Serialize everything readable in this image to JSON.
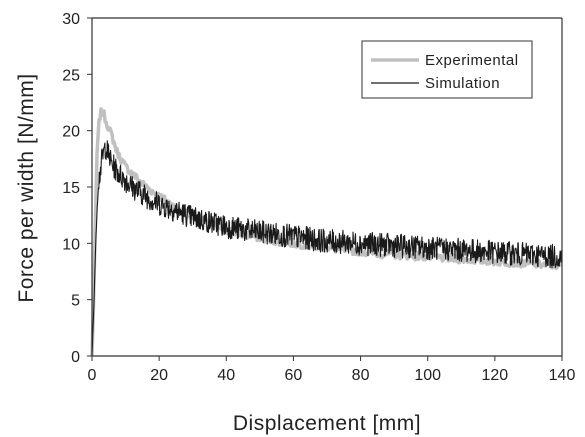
{
  "chart_data": {
    "type": "line",
    "xlabel": "Displacement [mm]",
    "ylabel": "Force per width [N/mm]",
    "xlim": [
      0,
      140
    ],
    "ylim": [
      0,
      30
    ],
    "xticks": [
      "0",
      "20",
      "40",
      "60",
      "80",
      "100",
      "120",
      "140"
    ],
    "yticks": [
      "0",
      "5",
      "10",
      "15",
      "20",
      "25",
      "30"
    ],
    "grid": false,
    "legend_position": "top-right",
    "series": [
      {
        "name": "Experimental",
        "color": "#c0c0c0",
        "x": [
          0,
          0.5,
          1,
          1.5,
          2,
          2.5,
          3,
          3.5,
          4,
          5,
          6,
          7,
          8,
          10,
          12,
          15,
          18,
          20,
          25,
          30,
          35,
          40,
          45,
          50,
          55,
          60,
          65,
          70,
          75,
          80,
          85,
          90,
          95,
          100,
          105,
          110,
          115,
          120,
          125,
          130,
          135,
          140
        ],
        "y": [
          0,
          5,
          12,
          18,
          20.5,
          21.5,
          21.7,
          21.5,
          21,
          20.2,
          19.5,
          18.5,
          17.8,
          16.8,
          16.2,
          15.3,
          14.6,
          14.2,
          13.2,
          12.4,
          11.8,
          11.2,
          10.8,
          10.5,
          10.2,
          10,
          9.8,
          9.6,
          9.4,
          9.3,
          9.1,
          9,
          8.9,
          8.8,
          8.7,
          8.6,
          8.5,
          8.4,
          8.3,
          8.2,
          8.1,
          8
        ]
      },
      {
        "name": "Simulation",
        "color": "#1a1a1a",
        "x": [
          0,
          0.5,
          1,
          1.5,
          2,
          3,
          4,
          5,
          6,
          8,
          10,
          12,
          15,
          18,
          20,
          25,
          30,
          35,
          40,
          45,
          50,
          55,
          60,
          65,
          70,
          75,
          80,
          85,
          90,
          95,
          100,
          105,
          110,
          115,
          120,
          125,
          130,
          135,
          140
        ],
        "y": [
          0,
          4,
          9,
          13,
          15.5,
          17.5,
          18.6,
          17.8,
          17,
          16.2,
          15.6,
          15,
          14.4,
          13.8,
          13.5,
          12.9,
          12.3,
          11.9,
          11.5,
          11.2,
          11,
          10.8,
          10.6,
          10.4,
          10.2,
          10.1,
          10,
          9.9,
          9.8,
          9.7,
          9.6,
          9.5,
          9.4,
          9.3,
          9.2,
          9.1,
          9,
          8.9,
          8.8
        ]
      }
    ]
  }
}
